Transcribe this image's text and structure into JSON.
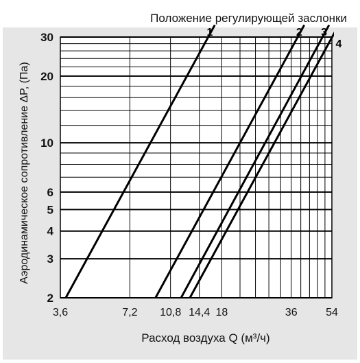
{
  "chart_data": {
    "type": "line",
    "title": "Положение регулирующей заслонки",
    "xlabel": "Расход воздуха Q (м³/ч)",
    "ylabel": "Аэродинамическое сопротивление ΔP, (Па)",
    "x_scale": "log",
    "y_scale": "log",
    "xlim": [
      3.6,
      54
    ],
    "ylim": [
      2,
      30
    ],
    "x_ticks": [
      3.6,
      7.2,
      10.8,
      14.4,
      18,
      36,
      54
    ],
    "x_tick_labels": [
      "3,6",
      "7,2",
      "10,8",
      "14,4",
      "18",
      "36",
      "54"
    ],
    "y_ticks": [
      2,
      3,
      4,
      5,
      6,
      10,
      20,
      30
    ],
    "y_tick_labels": [
      "2",
      "3",
      "4",
      "5",
      "6",
      "10",
      "20",
      "30"
    ],
    "grid": true,
    "series": [
      {
        "name": "1",
        "x": [
          3.8,
          16.8
        ],
        "y": [
          2,
          34
        ]
      },
      {
        "name": "2",
        "x": [
          9.3,
          41
        ],
        "y": [
          2,
          34
        ]
      },
      {
        "name": "3",
        "x": [
          12.0,
          52.5
        ],
        "y": [
          2,
          34
        ]
      },
      {
        "name": "4",
        "x": [
          13.1,
          56
        ],
        "y": [
          2,
          32
        ]
      }
    ]
  },
  "colors": {
    "panel": "#e6e6e6",
    "plot_bg": "#ffffff",
    "line": "#000000"
  }
}
